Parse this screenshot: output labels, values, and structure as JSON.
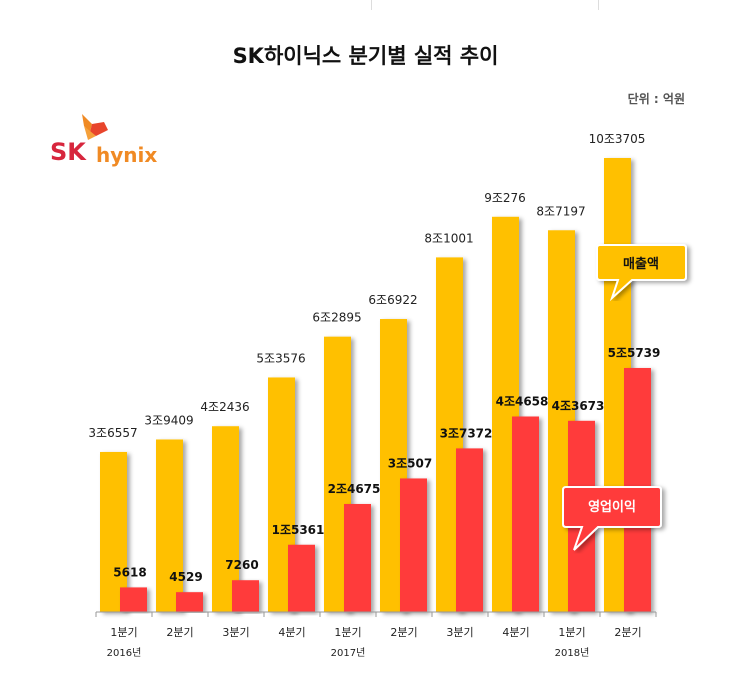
{
  "chart_data": {
    "type": "bar",
    "title": "SK하이닉스 분기별 실적 추이",
    "unit_label": "단위 : 억원",
    "categories": [
      "1분기",
      "2분기",
      "3분기",
      "4분기",
      "1분기",
      "2분기",
      "3분기",
      "4분기",
      "1분기",
      "2분기"
    ],
    "year_labels": [
      {
        "label": "2016년",
        "index": 0
      },
      {
        "label": "2017년",
        "index": 4
      },
      {
        "label": "2018년",
        "index": 8
      }
    ],
    "series": [
      {
        "name": "매출액",
        "color": "#FFC000",
        "values": [
          36557,
          39409,
          42436,
          53576,
          62895,
          66922,
          81001,
          90276,
          87197,
          103705
        ],
        "labels": [
          "3조6557",
          "3조9409",
          "4조2436",
          "5조3576",
          "6조2895",
          "6조6922",
          "8조1001",
          "9조276",
          "8조7197",
          "10조3705"
        ]
      },
      {
        "name": "영업이익",
        "color": "#FF3B3B",
        "values": [
          5618,
          4529,
          7260,
          15361,
          24675,
          30507,
          37372,
          44658,
          43673,
          55739
        ],
        "labels": [
          "5618",
          "4529",
          "7260",
          "1조5361",
          "2조4675",
          "3조507",
          "3조7372",
          "4조4658",
          "4조3673",
          "5조5739"
        ]
      }
    ],
    "ylim": [
      0,
      110000
    ],
    "grid": false,
    "legend": "callouts"
  },
  "logo": {
    "text_sk": "SK",
    "text_hynix": "hynix"
  }
}
